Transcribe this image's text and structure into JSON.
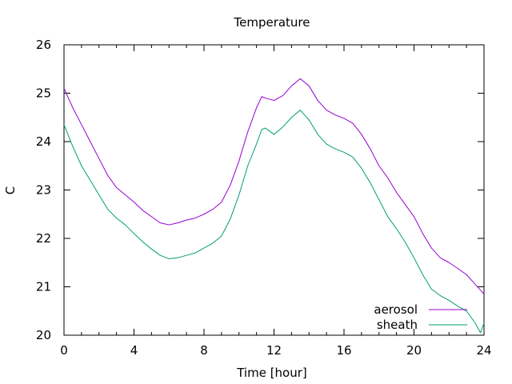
{
  "chart_data": {
    "type": "line",
    "title": "Temperature",
    "xlabel": "Time [hour]",
    "ylabel": "C",
    "xlim": [
      0,
      24
    ],
    "ylim": [
      20,
      26
    ],
    "xticks": [
      0,
      4,
      8,
      12,
      16,
      20,
      24
    ],
    "yticks": [
      20,
      21,
      22,
      23,
      24,
      25,
      26
    ],
    "grid": false,
    "legend": "bottom-right",
    "series": [
      {
        "name": "aerosol",
        "color": "#9400d3",
        "x": [
          0,
          0.5,
          1,
          1.5,
          2,
          2.5,
          3,
          3.5,
          4,
          4.5,
          5,
          5.5,
          6,
          6.5,
          7,
          7.5,
          8,
          8.5,
          9,
          9.5,
          10,
          10.5,
          11,
          11.3,
          11.5,
          12,
          12.5,
          13,
          13.5,
          14,
          14.5,
          15,
          15.5,
          16,
          16.5,
          17,
          17.5,
          18,
          18.5,
          19,
          19.5,
          20,
          20.5,
          21,
          21.5,
          22,
          22.5,
          23,
          23.5,
          24
        ],
        "y": [
          25.1,
          24.7,
          24.35,
          24.0,
          23.65,
          23.3,
          23.05,
          22.9,
          22.75,
          22.58,
          22.45,
          22.32,
          22.28,
          22.32,
          22.38,
          22.42,
          22.5,
          22.6,
          22.75,
          23.1,
          23.6,
          24.2,
          24.7,
          24.93,
          24.9,
          24.85,
          24.95,
          25.15,
          25.3,
          25.15,
          24.85,
          24.65,
          24.55,
          24.48,
          24.38,
          24.15,
          23.85,
          23.5,
          23.25,
          22.95,
          22.7,
          22.45,
          22.1,
          21.8,
          21.6,
          21.5,
          21.38,
          21.25,
          21.05,
          20.85
        ]
      },
      {
        "name": "sheath",
        "color": "#009e73",
        "x": [
          0,
          0.5,
          1,
          1.5,
          2,
          2.5,
          3,
          3.5,
          4,
          4.5,
          5,
          5.5,
          6,
          6.5,
          7,
          7.5,
          8,
          8.5,
          9,
          9.5,
          10,
          10.5,
          11,
          11.3,
          11.5,
          12,
          12.5,
          13,
          13.5,
          14,
          14.5,
          15,
          15.5,
          16,
          16.5,
          17,
          17.5,
          18,
          18.5,
          19,
          19.5,
          20,
          20.5,
          21,
          21.5,
          22,
          22.5,
          23,
          23.5,
          23.8,
          24
        ],
        "y": [
          24.35,
          23.9,
          23.5,
          23.2,
          22.9,
          22.6,
          22.42,
          22.28,
          22.1,
          21.93,
          21.78,
          21.65,
          21.58,
          21.6,
          21.65,
          21.7,
          21.8,
          21.9,
          22.05,
          22.4,
          22.9,
          23.5,
          23.95,
          24.25,
          24.28,
          24.15,
          24.3,
          24.5,
          24.65,
          24.45,
          24.15,
          23.95,
          23.85,
          23.78,
          23.68,
          23.45,
          23.15,
          22.8,
          22.45,
          22.2,
          21.92,
          21.6,
          21.25,
          20.95,
          20.82,
          20.72,
          20.6,
          20.5,
          20.25,
          20.05,
          20.25
        ]
      }
    ]
  }
}
